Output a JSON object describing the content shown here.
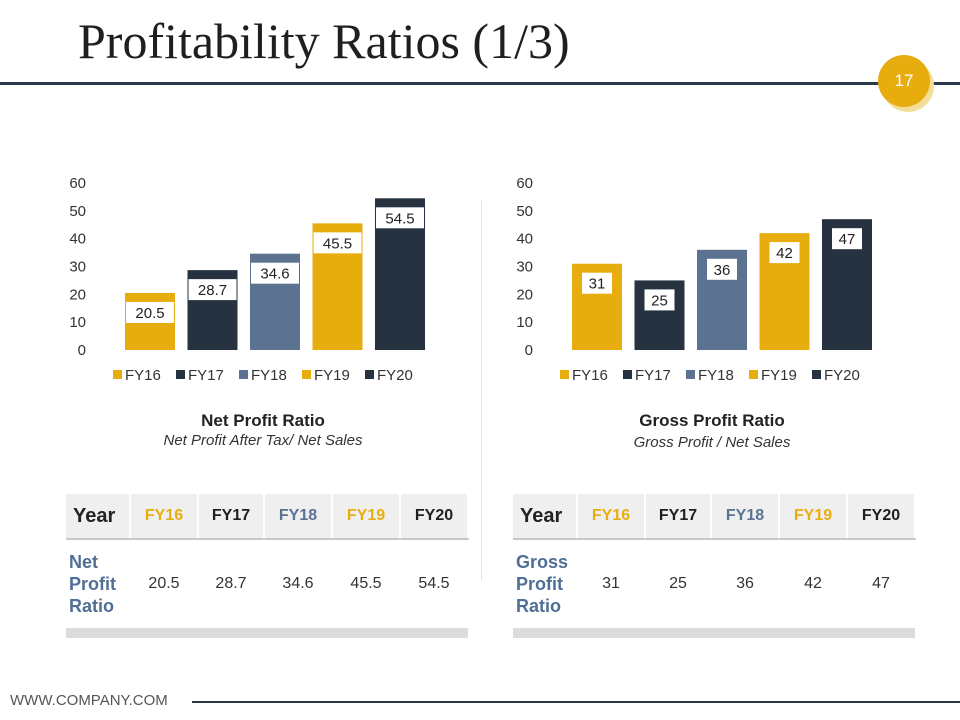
{
  "slide": {
    "title": "Profitability Ratios (1/3)",
    "page_number": "17",
    "footer": "WWW.COMPANY.COM"
  },
  "colors": {
    "yellow": "#e7ad0f",
    "dark": "#26323f",
    "blue": "#5b7391"
  },
  "chart_data": [
    {
      "type": "bar",
      "title": "Net Profit Ratio",
      "subtitle": "Net Profit After Tax/ Net Sales",
      "categories": [
        "FY16",
        "FY17",
        "FY18",
        "FY19",
        "FY20"
      ],
      "values": [
        20.5,
        28.7,
        34.6,
        45.5,
        54.5
      ],
      "labels": [
        "20.5",
        "28.7",
        "34.6",
        "45.5",
        "54.5"
      ],
      "bar_colors": [
        "#e7ad0f",
        "#26323f",
        "#5b7391",
        "#e7ad0f",
        "#26323f"
      ],
      "yticks": [
        "0",
        "10",
        "20",
        "30",
        "40",
        "50",
        "60"
      ],
      "ylim": [
        0,
        60
      ],
      "legend": [
        "FY16",
        "FY17",
        "FY18",
        "FY19",
        "FY20"
      ],
      "xlabel": "",
      "ylabel": ""
    },
    {
      "type": "bar",
      "title": "Gross Profit Ratio",
      "subtitle": "Gross Profit / Net Sales",
      "categories": [
        "FY16",
        "FY17",
        "FY18",
        "FY19",
        "FY20"
      ],
      "values": [
        31,
        25,
        36,
        42,
        47
      ],
      "labels": [
        "31",
        "25",
        "36",
        "42",
        "47"
      ],
      "bar_colors": [
        "#e7ad0f",
        "#26323f",
        "#5b7391",
        "#e7ad0f",
        "#26323f"
      ],
      "yticks": [
        "0",
        "10",
        "20",
        "30",
        "40",
        "50",
        "60"
      ],
      "ylim": [
        0,
        60
      ],
      "legend": [
        "FY16",
        "FY17",
        "FY18",
        "FY19",
        "FY20"
      ],
      "xlabel": "",
      "ylabel": ""
    }
  ],
  "tables": [
    {
      "header": [
        "Year",
        "FY16",
        "FY17",
        "FY18",
        "FY19",
        "FY20"
      ],
      "row_label": [
        "Net",
        "Profit",
        "Ratio"
      ],
      "values": [
        "20.5",
        "28.7",
        "34.6",
        "45.5",
        "54.5"
      ]
    },
    {
      "header": [
        "Year",
        "FY16",
        "FY17",
        "FY18",
        "FY19",
        "FY20"
      ],
      "row_label": [
        "Gross",
        "Profit",
        "Ratio"
      ],
      "values": [
        "31",
        "25",
        "36",
        "42",
        "47"
      ]
    }
  ]
}
